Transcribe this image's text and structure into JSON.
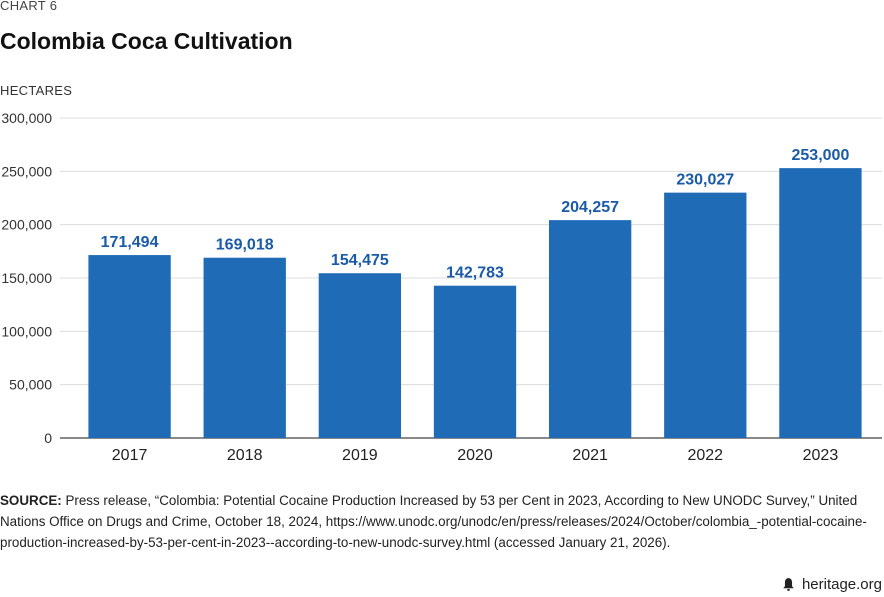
{
  "header": {
    "kicker": "CHART 6",
    "title": "Colombia Coca Cultivation",
    "unit_label": "HECTARES"
  },
  "chart_data": {
    "type": "bar",
    "title": "Colombia Coca Cultivation",
    "ylabel": "HECTARES",
    "xlabel": "",
    "categories": [
      "2017",
      "2018",
      "2019",
      "2020",
      "2021",
      "2022",
      "2023"
    ],
    "values": [
      171494,
      169018,
      154475,
      142783,
      204257,
      230027,
      253000
    ],
    "value_labels": [
      "171,494",
      "169,018",
      "154,475",
      "142,783",
      "204,257",
      "230,027",
      "253,000"
    ],
    "ylim": [
      0,
      300000
    ],
    "yticks": [
      0,
      50000,
      100000,
      150000,
      200000,
      250000,
      300000
    ],
    "ytick_labels": [
      "0",
      "50,000",
      "100,000",
      "150,000",
      "200,000",
      "250,000",
      "300,000"
    ],
    "grid": true,
    "bar_color": "#1f6bb6",
    "label_color": "#1a5aa6"
  },
  "footer": {
    "source_label": "SOURCE:",
    "source_text": " Press release, “Colombia: Potential Cocaine Production Increased by 53 per Cent in 2023, According to New UNODC Survey,” United Nations Office on Drugs and Crime, October 18, 2024, https://www.unodc.org/unodc/en/press/releases/2024/October/colombia_-potential-cocaine-production-increased-by-53-per-cent-in-2023--according-to-new-unodc-survey.html (accessed January 21, 2026).",
    "brand": "heritage.org",
    "brand_icon": "bell-icon"
  }
}
